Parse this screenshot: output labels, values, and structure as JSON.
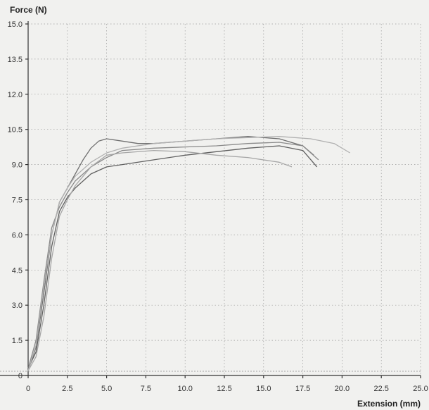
{
  "chart_data": {
    "type": "line",
    "ylabel": "Force (N)",
    "xlabel": "Extension (mm)",
    "xlim": [
      0,
      25
    ],
    "ylim": [
      0,
      15
    ],
    "x_ticks": [
      "0",
      "2.5",
      "5.0",
      "7.5",
      "10.0",
      "12.5",
      "15.0",
      "17.5",
      "20.0",
      "22.5",
      "25.0"
    ],
    "y_ticks": [
      "0",
      "1.5",
      "3.0",
      "4.5",
      "6.0",
      "7.5",
      "9.0",
      "10.5",
      "12.0",
      "13.5",
      "15.0"
    ],
    "grid": true,
    "series": [
      {
        "color": "#6f6f6f",
        "x": [
          0,
          0.5,
          1,
          1.5,
          2,
          2.5,
          3,
          3.5,
          4,
          4.5,
          5,
          6,
          7,
          8,
          10,
          12,
          14,
          16,
          17.5,
          18.2
        ],
        "y": [
          0.2,
          1.2,
          3.5,
          6,
          7.4,
          8,
          8.6,
          9.2,
          9.7,
          10,
          10.1,
          10.0,
          9.9,
          9.9,
          10.0,
          10.1,
          10.2,
          10.1,
          9.8,
          9.4
        ]
      },
      {
        "color": "#8a8a8a",
        "x": [
          0,
          0.5,
          1,
          1.5,
          2,
          2.5,
          3,
          4,
          5,
          6,
          8,
          10,
          12,
          14,
          16,
          17.5,
          18.5
        ],
        "y": [
          0.3,
          1.5,
          4,
          6.3,
          7.2,
          7.8,
          8.3,
          8.9,
          9.3,
          9.6,
          9.7,
          9.75,
          9.8,
          9.9,
          9.95,
          9.8,
          9.2
        ]
      },
      {
        "color": "#606060",
        "x": [
          0,
          0.5,
          1,
          1.5,
          2,
          2.5,
          3,
          4,
          5,
          6,
          8,
          10,
          12,
          14,
          16,
          17.5,
          18.4
        ],
        "y": [
          0.3,
          1.0,
          3.0,
          5.5,
          7.0,
          7.6,
          8.0,
          8.6,
          8.9,
          9.0,
          9.2,
          9.4,
          9.55,
          9.7,
          9.8,
          9.6,
          8.9
        ]
      },
      {
        "color": "#a6a6a6",
        "x": [
          0,
          0.5,
          1,
          1.5,
          2,
          2.5,
          3,
          4,
          5,
          6,
          8,
          10,
          12,
          14,
          16,
          16.8
        ],
        "y": [
          0.2,
          0.8,
          2.5,
          5.0,
          6.8,
          7.5,
          8.1,
          8.9,
          9.4,
          9.5,
          9.6,
          9.55,
          9.4,
          9.3,
          9.1,
          8.9
        ]
      },
      {
        "color": "#b0b0b0",
        "x": [
          0,
          0.5,
          1,
          1.5,
          2,
          2.5,
          3,
          4,
          5,
          6,
          8,
          10,
          12,
          14,
          16,
          18,
          19.5,
          20.5
        ],
        "y": [
          0.2,
          1.3,
          3.8,
          6.0,
          7.4,
          8.0,
          8.5,
          9.1,
          9.5,
          9.7,
          9.9,
          10.0,
          10.1,
          10.15,
          10.2,
          10.1,
          9.9,
          9.5
        ]
      }
    ]
  }
}
